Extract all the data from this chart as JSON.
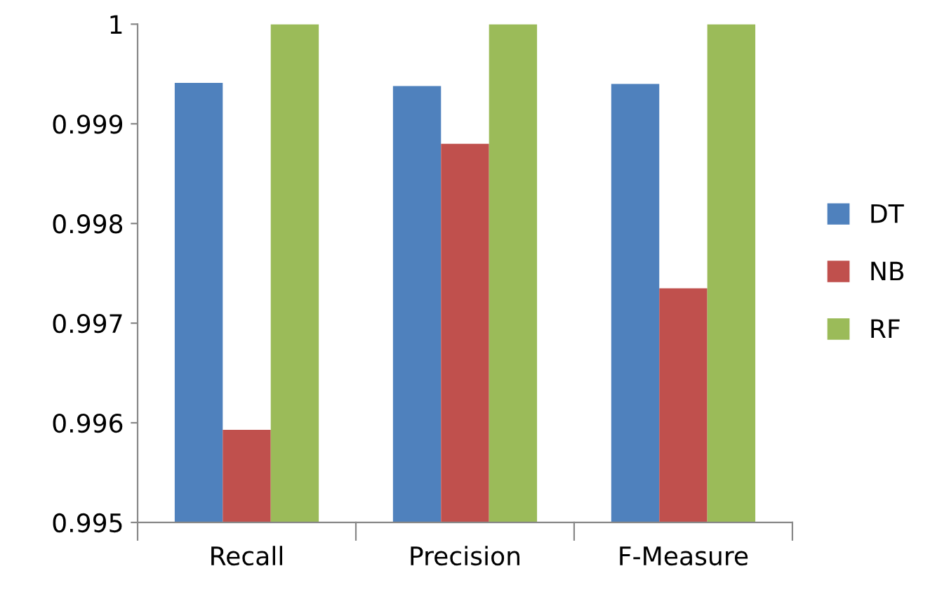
{
  "chart_data": {
    "type": "bar",
    "categories": [
      "Recall",
      "Precision",
      "F-Measure"
    ],
    "series": [
      {
        "name": "DT",
        "color": "#4f81bd",
        "values": [
          0.99941,
          0.99938,
          0.9994
        ]
      },
      {
        "name": "NB",
        "color": "#c0504d",
        "values": [
          0.99593,
          0.9988,
          0.99735
        ]
      },
      {
        "name": "RF",
        "color": "#9bbb59",
        "values": [
          1.0,
          1.0,
          1.0
        ]
      }
    ],
    "ylim": [
      0.995,
      1
    ],
    "yticks": [
      {
        "value": 0.995,
        "label": "0.995"
      },
      {
        "value": 0.996,
        "label": "0.996"
      },
      {
        "value": 0.997,
        "label": "0.997"
      },
      {
        "value": 0.998,
        "label": "0.998"
      },
      {
        "value": 0.999,
        "label": "0.999"
      },
      {
        "value": 1,
        "label": "1"
      }
    ],
    "grid": false,
    "legend": "right"
  }
}
